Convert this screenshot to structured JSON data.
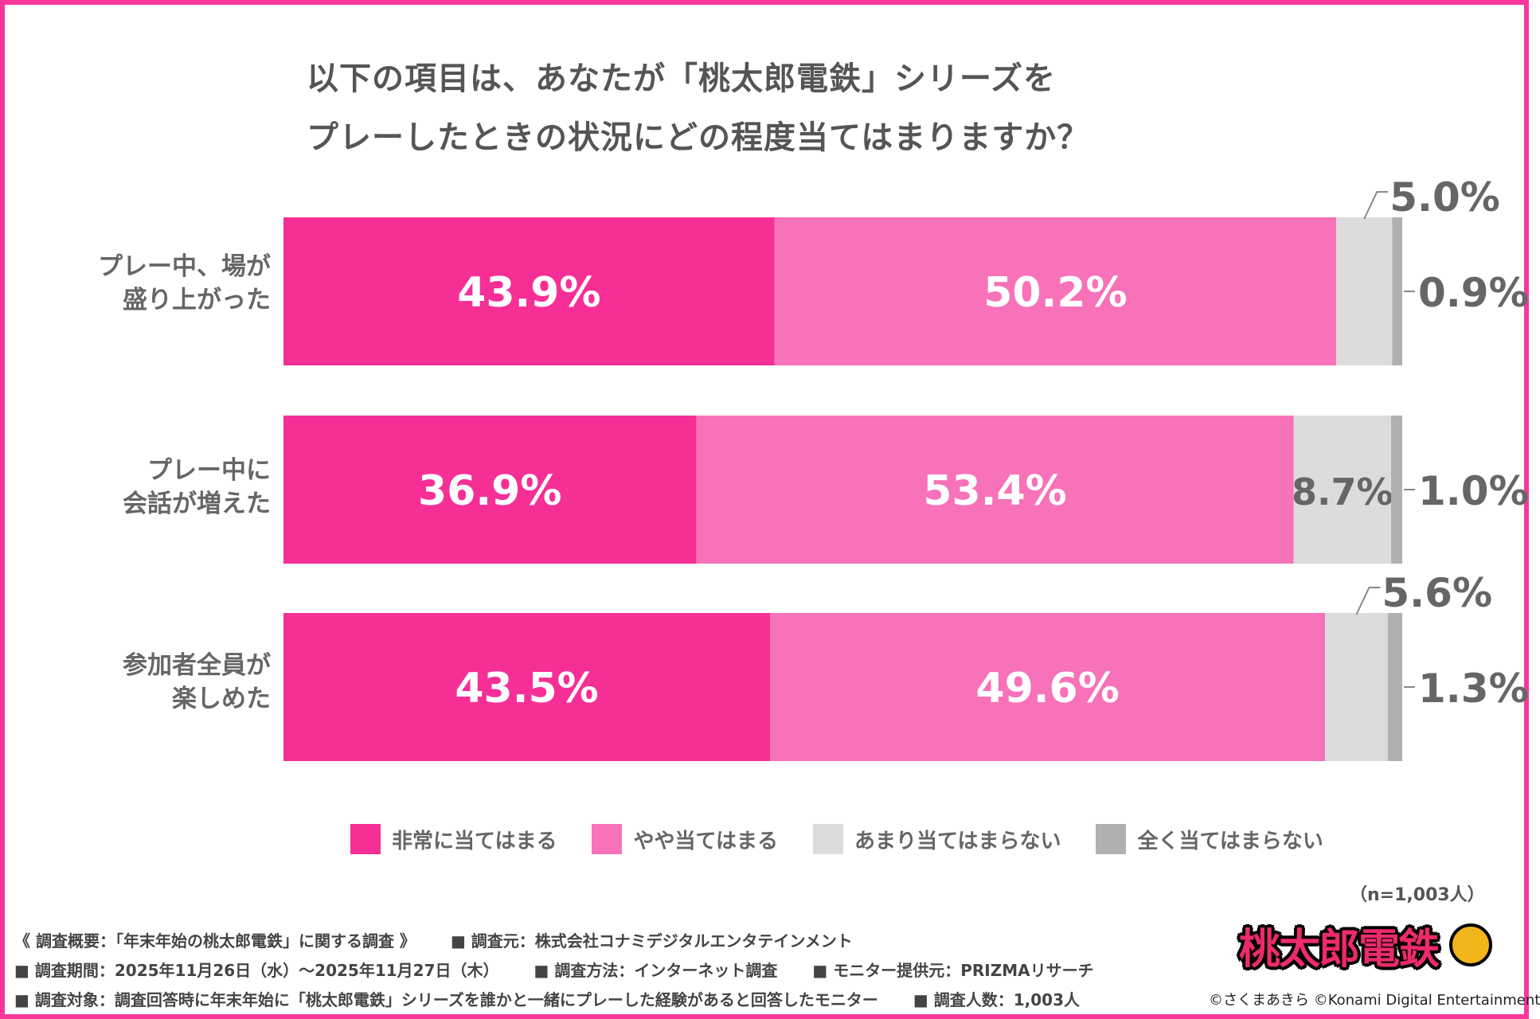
{
  "chart_data": {
    "type": "bar",
    "orientation": "horizontal-stacked-100",
    "title": "以下の項目は、あなたが「桃太郎電鉄」シリーズを\nプレーしたときの状況にどの程度当てはまりますか？",
    "title_lines": [
      "以下の項目は、あなたが「桃太郎電鉄」シリーズを",
      "プレーしたときの状況にどの程度当てはまりますか？"
    ],
    "categories": [
      [
        "プレー中、場が",
        "盛り上がった"
      ],
      [
        "プレー中に",
        "会話が増えた"
      ],
      [
        "参加者全員が",
        "楽しめた"
      ]
    ],
    "series": [
      {
        "name": "非常に当てはまる",
        "color": "#f62f97",
        "label_color": "#ffffff",
        "values": [
          43.9,
          36.9,
          43.5
        ],
        "labels": [
          "43.9%",
          "36.9%",
          "43.5%"
        ],
        "label_position": [
          "inside",
          "inside",
          "inside"
        ]
      },
      {
        "name": "やや当てはまる",
        "color": "#f772b8",
        "label_color": "#ffffff",
        "values": [
          50.2,
          53.4,
          49.6
        ],
        "labels": [
          "50.2%",
          "53.4%",
          "49.6%"
        ],
        "label_position": [
          "inside",
          "inside",
          "inside"
        ]
      },
      {
        "name": "あまり当てはまらない",
        "color": "#dcdcdc",
        "label_color": "#666666",
        "values": [
          5.0,
          8.7,
          5.6
        ],
        "labels": [
          "5.0%",
          "8.7%",
          "5.6%"
        ],
        "label_position": [
          "above",
          "inside",
          "above"
        ]
      },
      {
        "name": "全く当てはまらない",
        "color": "#b0b0b0",
        "label_color": "#666666",
        "values": [
          0.9,
          1.0,
          1.3
        ],
        "labels": [
          "0.9%",
          "1.0%",
          "1.3%"
        ],
        "label_position": [
          "right",
          "right",
          "right"
        ]
      }
    ],
    "xlim": [
      0,
      100
    ],
    "grid": false,
    "legend": "bottom",
    "sample_note": "（n=1,003人）"
  },
  "footer": {
    "line1": [
      "《 調査概要：「年末年始の桃太郎電鉄」に関する調査 》",
      "■ 調査元：株式会社コナミデジタルエンタテインメント"
    ],
    "line2": [
      "■ 調査期間：2025年11月26日（水）～2025年11月27日（木）",
      "■ 調査方法：インターネット調査",
      "■ モニター提供元：PRIZMAリサーチ"
    ],
    "line3": [
      "■ 調査対象：調査回答時に年末年始に「桃太郎電鉄」シリーズを誰かと一緒にプレーした経験があると回答したモニター",
      "■ 調査人数：1,003人"
    ]
  },
  "logo": {
    "text": "桃太郎電鉄",
    "copyright": "©さくまあきら ©Konami Digital Entertainment"
  },
  "colors": {
    "border": "#f8379b"
  }
}
